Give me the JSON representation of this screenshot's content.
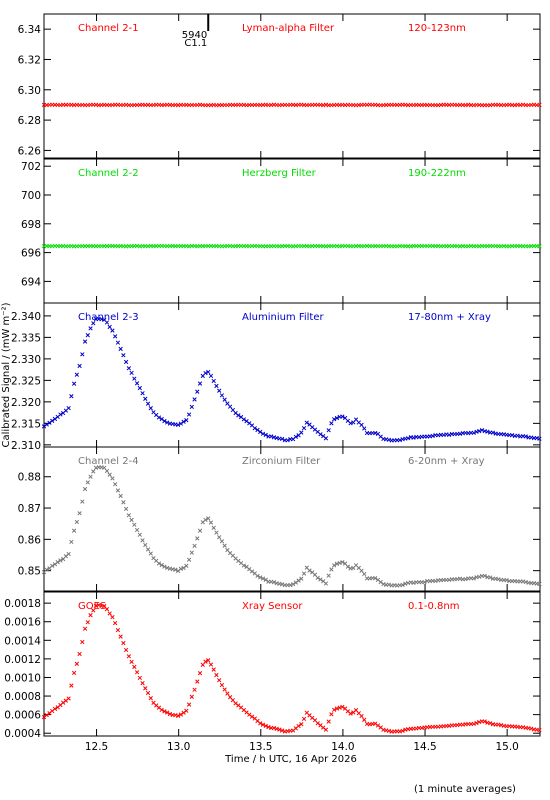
{
  "chart_data": {
    "type": "scatter",
    "xlabel": "Time / h UTC, 16 Apr 2026",
    "ylabel": "Calibrated Signal / (mW m⁻²)",
    "footnote": "(1 minute averages)",
    "xlim": [
      12.18,
      15.2
    ],
    "xticks": [
      "12.5",
      "13.0",
      "13.5",
      "14.0",
      "14.5",
      "15.0"
    ],
    "xtick_values": [
      12.5,
      13.0,
      13.5,
      14.0,
      14.5,
      15.0
    ],
    "marker": "x",
    "flare_marker": {
      "x": 13.18,
      "labels": [
        "5940",
        "C1.1"
      ]
    },
    "panels": [
      {
        "name": "Channel 2-1",
        "filter": "Lyman-alpha Filter",
        "band": "120-123nm",
        "color": "#ff0000",
        "ylim": [
          6.255,
          6.35
        ],
        "yticks": [
          "6.26",
          "6.28",
          "6.30",
          "6.32",
          "6.34"
        ],
        "ytick_values": [
          6.26,
          6.28,
          6.3,
          6.32,
          6.34
        ],
        "profile": "flat",
        "base": 6.29,
        "noise": 0.0004
      },
      {
        "name": "Channel 2-2",
        "filter": "Herzberg Filter",
        "band": "190-222nm",
        "color": "#00dd00",
        "ylim": [
          692.5,
          702.5
        ],
        "yticks": [
          "694",
          "696",
          "698",
          "700",
          "702"
        ],
        "ytick_values": [
          694,
          696,
          698,
          700,
          702
        ],
        "profile": "flat",
        "base": 696.45,
        "noise": 0.03
      },
      {
        "name": "Channel 2-3",
        "filter": "Aluminium Filter",
        "band": "17-80nm + Xray",
        "color": "#0000cc",
        "ylim": [
          2.3095,
          2.343
        ],
        "yticks": [
          "2.310",
          "2.315",
          "2.320",
          "2.325",
          "2.330",
          "2.335",
          "2.340"
        ],
        "ytick_values": [
          2.31,
          2.315,
          2.32,
          2.325,
          2.33,
          2.335,
          2.34
        ],
        "profile": "flare",
        "base": 2.3105,
        "amp": 0.0295,
        "noise": 0.0002
      },
      {
        "name": "Channel 2-4",
        "filter": "Zirconium Filter",
        "band": "6-20nm + Xray",
        "color": "#777777",
        "ylim": [
          0.8435,
          0.8895
        ],
        "yticks": [
          "0.85",
          "0.86",
          "0.87",
          "0.88"
        ],
        "ytick_values": [
          0.85,
          0.86,
          0.87,
          0.88
        ],
        "profile": "flare",
        "base": 0.8445,
        "amp": 0.0395,
        "noise": 0.0003
      },
      {
        "name": "GOES",
        "filter": "Xray Sensor",
        "band": "0.1-0.8nm",
        "color": "#ff0000",
        "ylim": [
          0.00037,
          0.00192
        ],
        "yticks": [
          "0.0004",
          "0.0006",
          "0.0008",
          "0.0010",
          "0.0012",
          "0.0014",
          "0.0016",
          "0.0018"
        ],
        "ytick_values": [
          0.0004,
          0.0006,
          0.0008,
          0.001,
          0.0012,
          0.0014,
          0.0016,
          0.0018
        ],
        "profile": "flare",
        "base": 0.00039,
        "amp": 0.00142,
        "noise": 6e-06
      }
    ],
    "flare_shape": {
      "x": [
        12.18,
        12.28,
        12.33,
        12.36,
        12.4,
        12.43,
        12.47,
        12.5,
        12.55,
        12.6,
        12.65,
        12.7,
        12.75,
        12.8,
        12.85,
        12.9,
        12.95,
        13.0,
        13.05,
        13.1,
        13.15,
        13.18,
        13.2,
        13.25,
        13.3,
        13.35,
        13.4,
        13.45,
        13.5,
        13.55,
        13.6,
        13.65,
        13.7,
        13.75,
        13.78,
        13.8,
        13.85,
        13.9,
        13.92,
        13.95,
        14.0,
        14.05,
        14.08,
        14.12,
        14.15,
        14.2,
        14.25,
        14.3,
        14.35,
        14.4,
        14.5,
        14.6,
        14.7,
        14.8,
        14.85,
        14.9,
        15.0,
        15.1,
        15.2
      ],
      "level": [
        0.13,
        0.22,
        0.27,
        0.45,
        0.62,
        0.8,
        0.92,
        0.98,
        0.97,
        0.88,
        0.73,
        0.58,
        0.46,
        0.34,
        0.23,
        0.18,
        0.15,
        0.14,
        0.18,
        0.35,
        0.54,
        0.56,
        0.52,
        0.4,
        0.3,
        0.23,
        0.18,
        0.13,
        0.08,
        0.05,
        0.04,
        0.02,
        0.03,
        0.08,
        0.16,
        0.14,
        0.08,
        0.03,
        0.13,
        0.19,
        0.21,
        0.15,
        0.18,
        0.13,
        0.07,
        0.08,
        0.03,
        0.02,
        0.02,
        0.04,
        0.05,
        0.06,
        0.07,
        0.08,
        0.1,
        0.08,
        0.06,
        0.05,
        0.03
      ]
    }
  }
}
